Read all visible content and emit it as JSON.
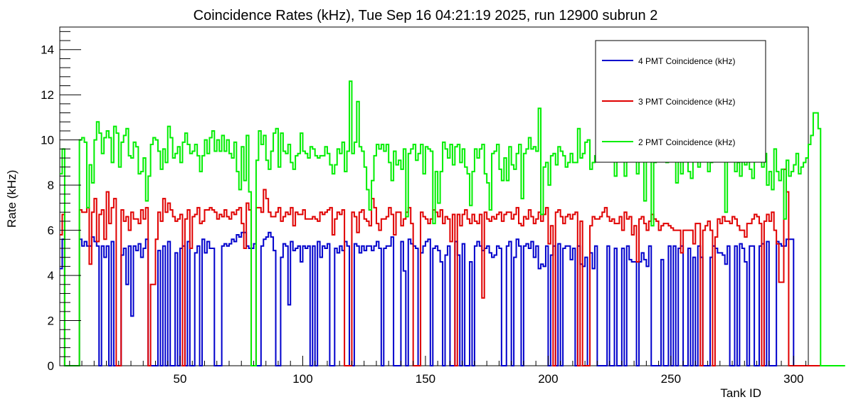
{
  "chart_data": {
    "type": "line",
    "title": "Coincidence Rates (kHz), Tue Sep 16 04:21:19 2025, run 12900 subrun 2",
    "xlabel": "Tank ID",
    "ylabel": "Rate (kHz)",
    "xlim": [
      1,
      306
    ],
    "ylim": [
      0,
      15
    ],
    "x_ticks": [
      50,
      100,
      150,
      200,
      250,
      300
    ],
    "x_tick_labels": [
      "50",
      "100",
      "150",
      "200",
      "250",
      "300"
    ],
    "y_ticks": [
      0,
      2,
      4,
      6,
      8,
      10,
      12,
      14
    ],
    "y_tick_labels": [
      "0",
      "2",
      "4",
      "6",
      "8",
      "10",
      "12",
      "14"
    ],
    "grid": false,
    "legend_position": "top-right",
    "step_histogram": true,
    "series": [
      {
        "name": "4 PMT Coincidence (kHz)",
        "color": "#0000cc",
        "values": [
          4.3,
          5.6,
          0,
          0,
          0,
          0,
          0,
          0,
          5.6,
          5.3,
          5.5,
          5.3,
          5.3,
          5.7,
          5.5,
          5.3,
          0,
          5.3,
          4.8,
          5.3,
          0,
          5.5,
          0,
          0,
          0,
          4.9,
          5.2,
          3.6,
          5.3,
          2.2,
          5.3,
          5.1,
          5.4,
          4.8,
          5.2,
          5.6,
          0,
          0,
          0,
          0,
          5.1,
          0,
          5.3,
          0,
          5.5,
          0,
          0,
          5.0,
          0,
          5.2,
          5.3,
          0,
          5.5,
          0,
          0,
          5.0,
          5.3,
          0,
          5.6,
          5.0,
          5.5,
          5.2,
          5.2,
          0,
          0,
          0,
          5.3,
          5.4,
          5.3,
          5.4,
          5.6,
          5.5,
          5.8,
          5.7,
          5.9,
          5.9,
          5.3,
          5.2,
          5.2,
          5.4,
          0,
          0,
          5.3,
          5.6,
          5.7,
          5.9,
          5.7,
          5.1,
          0,
          0,
          4.8,
          5.4,
          5.3,
          2.7,
          5.5,
          5.1,
          5.2,
          5.3,
          4.6,
          5.3,
          5.2,
          5.3,
          0,
          5.3,
          0,
          5.5,
          4.8,
          5.3,
          5.2,
          5.4,
          0,
          0,
          5.2,
          5.0,
          5.3,
          5.1,
          5.5,
          5.3,
          0,
          0,
          5.4,
          5.3,
          5.0,
          5.3,
          5.1,
          5.3,
          5.3,
          5.1,
          5.3,
          5.5,
          5.2,
          0,
          5.2,
          5.3,
          5.3,
          5.7,
          0,
          0,
          0,
          5.5,
          4.2,
          0,
          5.6,
          5.4,
          5.3,
          5.2,
          0,
          5.0,
          5.3,
          5.5,
          5.6,
          0,
          5.2,
          5.3,
          5.1,
          4.6,
          0,
          4.9,
          5.3,
          0,
          0,
          5.5,
          4.9,
          0,
          5.4,
          0,
          0,
          4.6,
          0,
          5.3,
          5.5,
          5.3,
          5.1,
          5.2,
          5.3,
          5.0,
          4.8,
          4.9,
          5.3,
          5.2,
          0,
          0,
          5.3,
          5.5,
          0,
          4.8,
          5.6,
          5.3,
          0,
          5.3,
          5.4,
          5.2,
          5.5,
          4.8,
          5.3,
          4.3,
          4.5,
          4.4,
          5.3,
          0,
          4.9,
          5.3,
          0,
          5.4,
          0,
          5.2,
          5.3,
          5.3,
          4.7,
          5.2,
          0,
          5.3,
          4.5,
          4.4,
          4.8,
          0,
          5.0,
          4.3,
          5.3,
          0,
          0,
          0,
          0,
          5.3,
          0,
          0,
          5.2,
          0,
          0,
          5.2,
          0,
          5.3,
          4.7,
          4.6,
          4.6,
          0,
          4.6,
          5.0,
          4.7,
          4.4,
          5.3,
          0,
          0,
          0,
          0,
          4.7,
          0,
          0,
          5.3,
          0,
          5.3,
          0,
          5.2,
          5.3,
          0,
          0,
          5.2,
          0,
          4.8,
          0,
          5.3,
          4.8,
          0,
          0,
          0,
          4.8,
          5.3,
          5.2,
          5.0,
          5.0,
          4.9,
          4.5,
          5.3,
          0,
          0,
          5.3,
          0,
          5.4,
          5.2,
          4.6,
          0,
          5.3,
          5.3,
          0,
          0,
          5.3,
          5.4,
          0,
          5.5,
          0,
          0,
          0,
          5.5,
          5.4,
          5.3,
          5.3,
          5.6,
          5.6,
          5.6,
          0,
          0,
          0,
          0,
          0,
          0
        ]
      },
      {
        "name": "3 PMT Coincidence (kHz)",
        "color": "#e00000",
        "values": [
          5.8,
          6.7,
          0,
          0,
          0,
          0,
          0,
          0,
          6.9,
          6.8,
          6.8,
          7.0,
          4.5,
          6.8,
          7.4,
          5.5,
          6.7,
          6.9,
          5.6,
          7.7,
          6.3,
          7.0,
          7.4,
          0,
          0,
          6.9,
          6.4,
          6.6,
          6.0,
          6.8,
          6.5,
          6.5,
          6.3,
          6.9,
          6.5,
          7.0,
          0,
          3.6,
          3.6,
          5.6,
          6.8,
          6.4,
          7.4,
          6.8,
          7.2,
          6.9,
          6.6,
          6.4,
          6.5,
          6.7,
          0,
          6.5,
          6.9,
          5.2,
          6.6,
          6.7,
          7.0,
          6.3,
          6.4,
          6.9,
          6.9,
          7.0,
          6.9,
          6.8,
          6.5,
          6.7,
          6.6,
          6.9,
          6.6,
          6.5,
          6.8,
          6.7,
          6.9,
          7.0,
          6.3,
          5.2,
          7.2,
          6.9,
          0,
          0,
          7.0,
          7.0,
          6.8,
          7.8,
          7.4,
          6.8,
          6.6,
          6.6,
          6.8,
          7.0,
          6.4,
          6.6,
          6.8,
          6.7,
          7.0,
          6.2,
          6.8,
          6.7,
          6.7,
          6.9,
          6.5,
          6.5,
          6.5,
          6.6,
          6.5,
          6.4,
          6.8,
          6.7,
          6.8,
          6.9,
          7.0,
          5.8,
          6.5,
          6.8,
          6.7,
          6.9,
          0,
          0,
          0,
          6.8,
          6.6,
          5.9,
          6.8,
          6.9,
          6.5,
          6.4,
          6.2,
          7.4,
          7.0,
          6.3,
          6.0,
          6.5,
          6.5,
          6.6,
          7.0,
          6.7,
          5.8,
          6.8,
          6.8,
          6.2,
          6.5,
          6.8,
          7.0,
          6.3,
          0,
          0,
          0,
          6.8,
          6.6,
          6.5,
          6.3,
          6.5,
          6.9,
          6.8,
          6.6,
          6.9,
          6.3,
          6.6,
          6.5,
          5.5,
          6.7,
          0,
          6.7,
          6.2,
          6.7,
          6.9,
          6.5,
          6.3,
          6.7,
          6.4,
          6.3,
          6.7,
          3.0,
          6.8,
          6.5,
          6.4,
          6.6,
          6.5,
          6.7,
          6.8,
          6.4,
          6.7,
          6.8,
          6.8,
          6.5,
          6.7,
          7.0,
          6.3,
          6.2,
          6.6,
          6.5,
          6.9,
          6.6,
          6.3,
          6.5,
          6.8,
          6.4,
          6.7,
          7.0,
          5.4,
          6.2,
          0,
          6.8,
          6.9,
          6.6,
          6.3,
          6.6,
          6.7,
          6.5,
          6.7,
          6.8,
          0,
          6.4,
          0,
          0,
          0,
          6.2,
          6.6,
          6.5,
          6.5,
          6.6,
          6.8,
          7.0,
          6.6,
          6.4,
          6.5,
          6.3,
          6.3,
          6.6,
          6.0,
          6.8,
          6.5,
          6.6,
          5.8,
          6.2,
          4.6,
          6.5,
          6.6,
          6.3,
          6.0,
          6.4,
          6.7,
          6.5,
          6.4,
          6.0,
          6.2,
          6.3,
          6.3,
          6.2,
          6.1,
          6.0,
          6.0,
          6.0,
          5.0,
          6.0,
          6.0,
          6.0,
          6.0,
          5.4,
          6.3,
          6.3,
          0,
          6.0,
          6.2,
          6.4,
          6.0,
          0,
          5.7,
          6.5,
          6.3,
          6.6,
          6.4,
          6.4,
          6.3,
          6.6,
          6.5,
          6.2,
          6.0,
          6.0,
          5.7,
          6.3,
          6.3,
          6.5,
          6.7,
          6.6,
          6.3,
          0,
          6.4,
          6.7,
          6.4,
          6.8,
          6.0,
          5.4,
          3.7,
          3.7,
          8.7,
          7.7,
          0,
          0,
          0,
          0,
          0,
          0,
          0,
          0,
          0,
          0,
          0,
          0,
          0
        ]
      },
      {
        "name": "2 PMT Coincidence (kHz)",
        "color": "#00ee00",
        "values": [
          8.5,
          9.6,
          0,
          0,
          0,
          0,
          0,
          0,
          10.0,
          10.1,
          9.9,
          7.0,
          8.9,
          8.1,
          10.0,
          10.8,
          10.3,
          9.4,
          10.1,
          10.4,
          10.1,
          9.0,
          10.6,
          10.3,
          8.8,
          9.9,
          10.2,
          10.5,
          9.3,
          9.2,
          9.9,
          9.7,
          8.5,
          8.6,
          9.2,
          7.3,
          8.4,
          9.8,
          10.1,
          10.0,
          9.5,
          8.7,
          9.6,
          9.0,
          10.6,
          10.1,
          9.2,
          9.4,
          9.7,
          9.0,
          9.9,
          10.3,
          9.8,
          9.4,
          9.5,
          9.8,
          9.3,
          8.6,
          9.3,
          10.0,
          9.4,
          10.1,
          10.4,
          9.5,
          10.0,
          9.5,
          10.2,
          9.5,
          10.0,
          9.4,
          9.2,
          9.9,
          8.6,
          7.8,
          9.7,
          8.2,
          10.2,
          7.7,
          0,
          0,
          9.1,
          10.4,
          9.8,
          10.2,
          9.1,
          8.7,
          9.5,
          10.3,
          10.5,
          8.8,
          10.3,
          9.5,
          9.4,
          9.8,
          9.0,
          8.7,
          9.3,
          9.4,
          10.3,
          9.5,
          9.4,
          9.2,
          9.7,
          9.6,
          9.3,
          9.2,
          9.3,
          9.3,
          9.7,
          9.4,
          8.9,
          8.5,
          8.9,
          9.6,
          9.4,
          9.9,
          8.6,
          9.5,
          12.6,
          9.4,
          9.9,
          11.7,
          9.7,
          9.5,
          8.8,
          7.8,
          6.9,
          8.2,
          9.3,
          9.8,
          9.6,
          9.8,
          9.5,
          9.8,
          9.0,
          8.2,
          9.5,
          8.9,
          9.1,
          8.7,
          9.6,
          6.6,
          9.4,
          9.6,
          9.8,
          9.1,
          9.4,
          9.8,
          8.5,
          9.7,
          9.6,
          9.5,
          6.3,
          8.6,
          7.2,
          8.6,
          9.9,
          9.6,
          9.2,
          9.8,
          8.9,
          9.7,
          9.8,
          9.0,
          9.6,
          8.8,
          8.5,
          7.1,
          8.6,
          9.6,
          9.2,
          9.6,
          9.8,
          8.5,
          8.1,
          6.9,
          9.4,
          9.5,
          9.8,
          8.7,
          8.2,
          9.2,
          8.2,
          9.7,
          8.9,
          8.7,
          9.4,
          9.8,
          7.4,
          9.4,
          9.6,
          10.1,
          9.6,
          9.7,
          9.5,
          11.4,
          6.7,
          8.8,
          9.0,
          8.0,
          9.3,
          9.4,
          8.9,
          9.7,
          9.5,
          9.3,
          8.8,
          9.0,
          9.4,
          9.0,
          9.0,
          10.5,
          9.2,
          9.4,
          9.9,
          10.0,
          8.7,
          9.0,
          9.3,
          9.7,
          9.4,
          9.7,
          9.1,
          9.6,
          9.4,
          9.5,
          8.4,
          9.3,
          9.9,
          9.4,
          8.4,
          9.6,
          9.8,
          9.4,
          9.4,
          8.5,
          9.2,
          9.6,
          7.3,
          9.6,
          9.6,
          6.2,
          9.0,
          9.3,
          9.4,
          9.6,
          9.5,
          9.0,
          9.4,
          9.8,
          9.3,
          8.1,
          9.4,
          8.5,
          9.7,
          9.9,
          8.6,
          8.3,
          9.3,
          9.7,
          8.8,
          9.8,
          9.5,
          10.1,
          8.6,
          9.0,
          9.3,
          9.6,
          9.5,
          9.1,
          9.3,
          6.8,
          9.1,
          9.3,
          9.2,
          8.6,
          9.0,
          8.4,
          9.1,
          8.9,
          9.3,
          8.7,
          8.3,
          9.2,
          9.3,
          9.3,
          8.8,
          9.4,
          8.0,
          8.6,
          7.8,
          9.6,
          8.6,
          8.2,
          8.7,
          6.5,
          9.1,
          8.4,
          8.6,
          8.9,
          9.4,
          8.5,
          8.8,
          9.0,
          9.2,
          9.8,
          10.2,
          11.2,
          11.2,
          10.5,
          0,
          0,
          0,
          0,
          0,
          0,
          0,
          0,
          0,
          0
        ]
      }
    ]
  }
}
